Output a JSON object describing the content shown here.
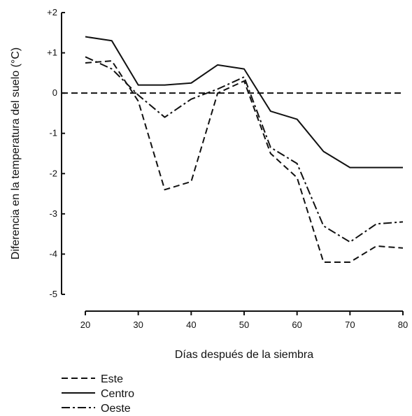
{
  "chart_data": {
    "type": "line",
    "title": "",
    "xlabel": "Días después de la siembra",
    "ylabel": "Diferencia en la temperatura del suelo (°C)",
    "xlim": [
      20,
      80
    ],
    "ylim": [
      -5,
      2
    ],
    "x_ticks": [
      20,
      30,
      40,
      50,
      60,
      70,
      80
    ],
    "y_ticks": [
      2,
      1,
      0,
      -1,
      -2,
      -3,
      -4,
      -5
    ],
    "y_tick_labels": [
      "+2",
      "+1",
      "0",
      "-1",
      "-2",
      "-3",
      "-4",
      "-5"
    ],
    "zero_line": {
      "style": "dashed"
    },
    "grid": false,
    "legend_position": "bottom-left",
    "series": [
      {
        "name": "Este",
        "style": "dashed",
        "x": [
          20,
          25,
          30,
          35,
          40,
          45,
          50,
          55,
          60,
          65,
          70,
          75,
          80
        ],
        "y": [
          0.75,
          0.8,
          -0.2,
          -2.4,
          -2.2,
          0.0,
          0.3,
          -1.5,
          -2.1,
          -4.2,
          -4.2,
          -3.8,
          -3.85
        ]
      },
      {
        "name": "Centro",
        "style": "solid",
        "x": [
          20,
          25,
          30,
          35,
          40,
          45,
          50,
          55,
          60,
          65,
          70,
          75,
          80
        ],
        "y": [
          1.4,
          1.3,
          0.2,
          0.2,
          0.25,
          0.7,
          0.6,
          -0.45,
          -0.65,
          -1.45,
          -1.85,
          -1.85,
          -1.85
        ]
      },
      {
        "name": "Oeste",
        "style": "dashdot",
        "x": [
          20,
          25,
          30,
          35,
          40,
          45,
          50,
          55,
          60,
          65,
          70,
          75,
          80
        ],
        "y": [
          0.9,
          0.6,
          -0.05,
          -0.6,
          -0.15,
          0.1,
          0.4,
          -1.35,
          -1.75,
          -3.3,
          -3.7,
          -3.25,
          -3.2
        ]
      }
    ]
  }
}
